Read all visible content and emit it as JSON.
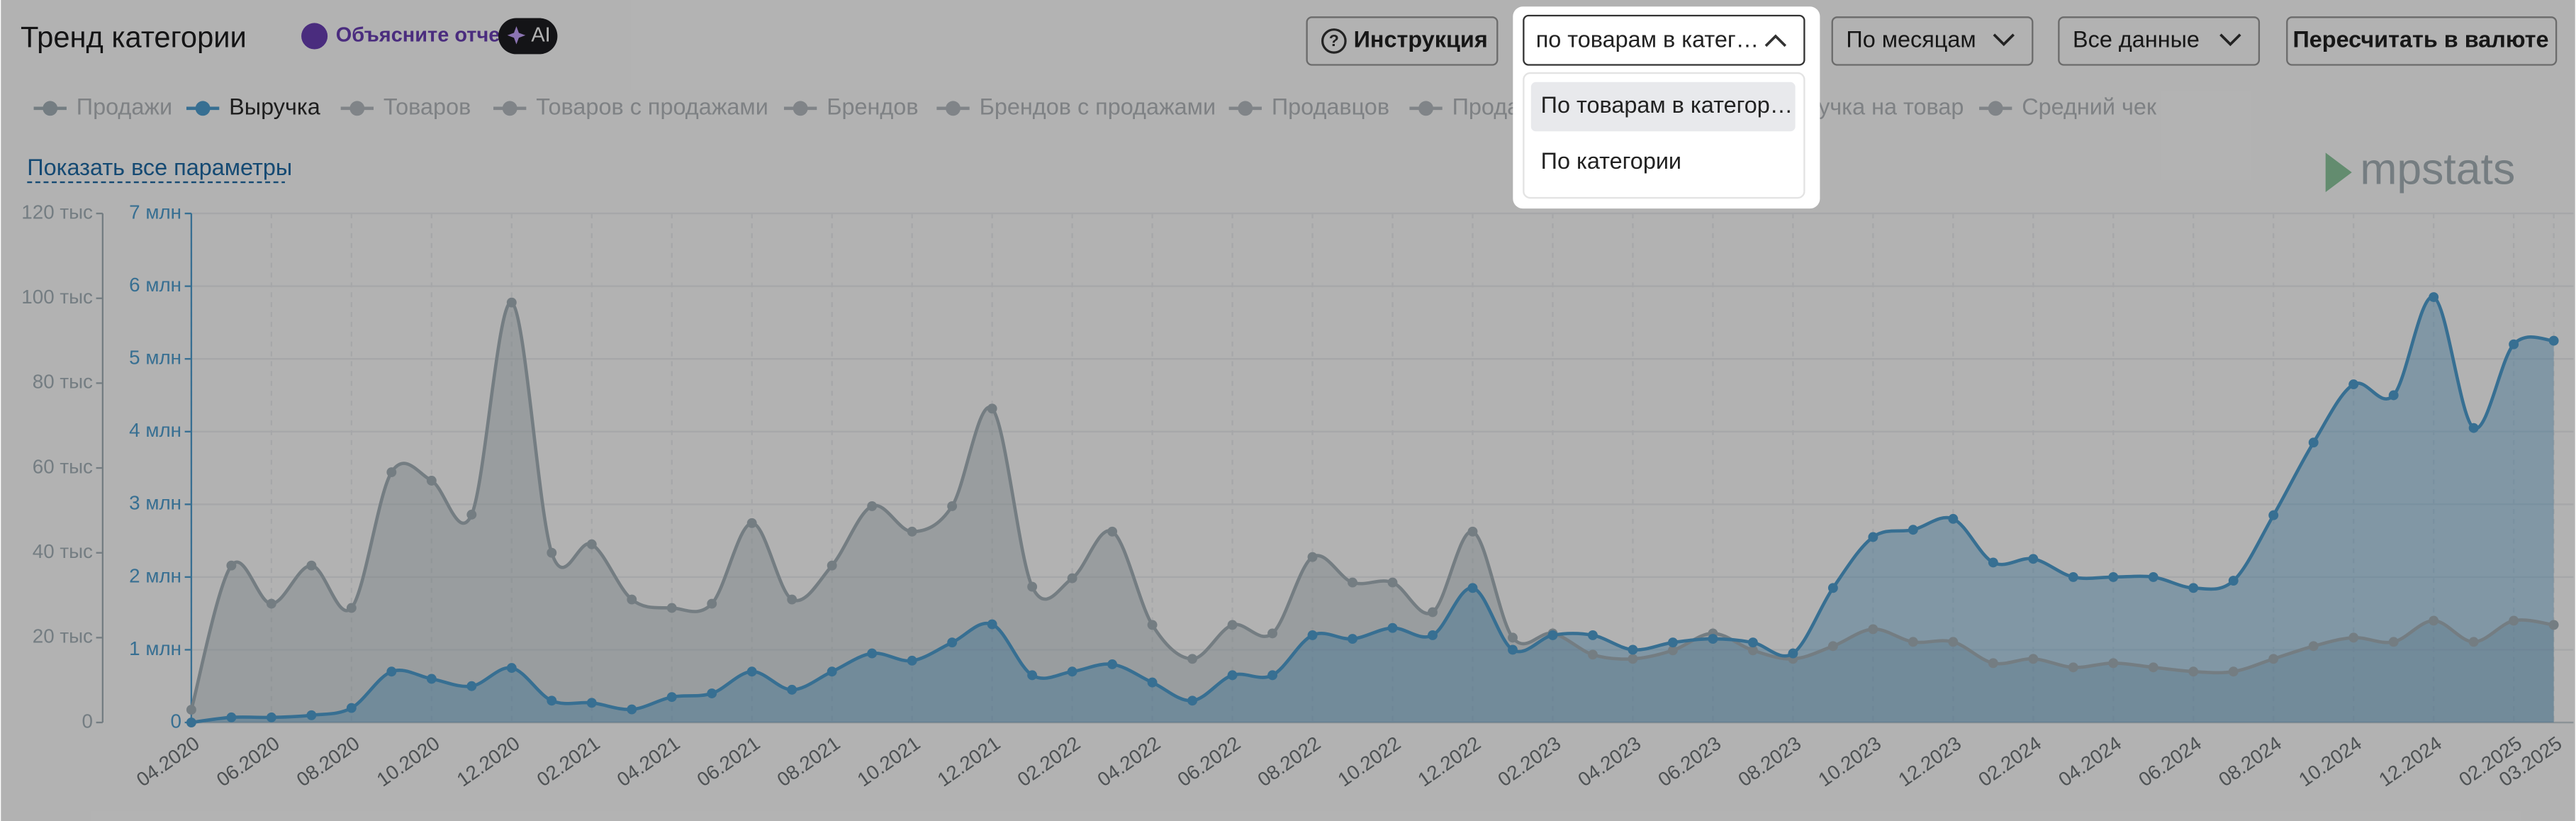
{
  "header": {
    "title": "Тренд категории",
    "ai_button": "Объясните отчет",
    "ai_badge": "AI",
    "instruction": "Инструкция",
    "grouping_select": "по товарам в катег…",
    "period_select": "По месяцам",
    "range_select": "Все данные",
    "currency_button": "Пересчитать в валюте"
  },
  "dropdown": {
    "options": [
      "По товарам в категор…",
      "По категории"
    ]
  },
  "legend_other": [
    "Товаров",
    "Товаров с продажами",
    "Брендов",
    "Брендов с продажами",
    "Продавцов",
    "Продавцов с продажами",
    "Выручка на товар",
    "Средний чек"
  ],
  "show_all_link": "Показать все параметры",
  "logo": "mpstats",
  "chart_data": {
    "type": "area",
    "categories": [
      "04.2020",
      null,
      "06.2020",
      null,
      "08.2020",
      null,
      "10.2020",
      null,
      "12.2020",
      null,
      "02.2021",
      null,
      "04.2021",
      null,
      "06.2021",
      null,
      "08.2021",
      null,
      "10.2021",
      null,
      "12.2021",
      null,
      "02.2022",
      null,
      "04.2022",
      null,
      "06.2022",
      null,
      "08.2022",
      null,
      "10.2022",
      null,
      "12.2022",
      null,
      "02.2023",
      null,
      "04.2023",
      null,
      "06.2023",
      null,
      "08.2023",
      null,
      "10.2023",
      null,
      "12.2023",
      null,
      "02.2024",
      null,
      "04.2024",
      null,
      "06.2024",
      null,
      "08.2024",
      null,
      "10.2024",
      null,
      "12.2024",
      null,
      "02.2025",
      "03.2025"
    ],
    "series": [
      {
        "name": "Продажи",
        "color": "#a7b3bb",
        "axis": "y",
        "values": [
          3000,
          37000,
          28000,
          37000,
          27000,
          59000,
          57000,
          49000,
          99000,
          40000,
          42000,
          29000,
          27000,
          28000,
          47000,
          29000,
          37000,
          51000,
          45000,
          51000,
          74000,
          32000,
          34000,
          45000,
          23000,
          15000,
          23000,
          21000,
          39000,
          33000,
          33000,
          26000,
          45000,
          20000,
          21000,
          16000,
          15000,
          17000,
          21000,
          17000,
          15000,
          18000,
          22000,
          19000,
          19000,
          14000,
          15000,
          13000,
          14000,
          13000,
          12000,
          12000,
          15000,
          18000,
          20000,
          19000,
          24000,
          19000,
          24000,
          23000
        ]
      },
      {
        "name": "Выручка",
        "color": "#4f9fd1",
        "axis": "y2",
        "values": [
          0,
          70000,
          70000,
          100000,
          200000,
          700000,
          600000,
          500000,
          750000,
          300000,
          270000,
          180000,
          350000,
          400000,
          700000,
          450000,
          700000,
          950000,
          850000,
          1100000,
          1350000,
          650000,
          700000,
          800000,
          550000,
          300000,
          650000,
          650000,
          1200000,
          1150000,
          1300000,
          1200000,
          1850000,
          1000000,
          1200000,
          1200000,
          1000000,
          1100000,
          1150000,
          1100000,
          950000,
          1850000,
          2550000,
          2650000,
          2800000,
          2200000,
          2250000,
          2000000,
          2000000,
          2000000,
          1850000,
          1950000,
          2850000,
          3850000,
          4650000,
          4500000,
          5850000,
          4050000,
          5200000,
          5250000
        ]
      }
    ],
    "ylim": [
      0,
      120000
    ],
    "yticks": [
      0,
      {
        "value": 20000,
        "label": "20 тыс"
      },
      {
        "value": 40000,
        "label": "40 тыс"
      },
      {
        "value": 60000,
        "label": "60 тыс"
      },
      {
        "value": 80000,
        "label": "80 тыс"
      },
      {
        "value": 100000,
        "label": "100 тыс"
      },
      {
        "value": 120000,
        "label": "120 тыс"
      }
    ],
    "y2lim": [
      0,
      7000000
    ],
    "y2ticks": [
      0,
      {
        "value": 1000000,
        "label": "1 млн"
      },
      {
        "value": 2000000,
        "label": "2 млн"
      },
      {
        "value": 3000000,
        "label": "3 млн"
      },
      {
        "value": 4000000,
        "label": "4 млн"
      },
      {
        "value": 5000000,
        "label": "5 млн"
      },
      {
        "value": 6000000,
        "label": "6 млн"
      },
      {
        "value": 7000000,
        "label": "7 млн"
      }
    ],
    "grid": true
  }
}
